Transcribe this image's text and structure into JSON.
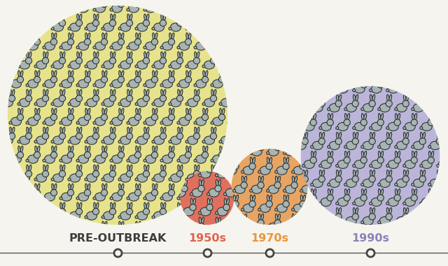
{
  "chart_data": {
    "type": "bubble",
    "categories": [
      "PRE-OUTBREAK",
      "1950s",
      "1970s",
      "1990s"
    ],
    "sizes": [
      100,
      6,
      12,
      40
    ],
    "colors": [
      "#e6e38c",
      "#e0705e",
      "#e8a462",
      "#bab5d9"
    ]
  }
}
